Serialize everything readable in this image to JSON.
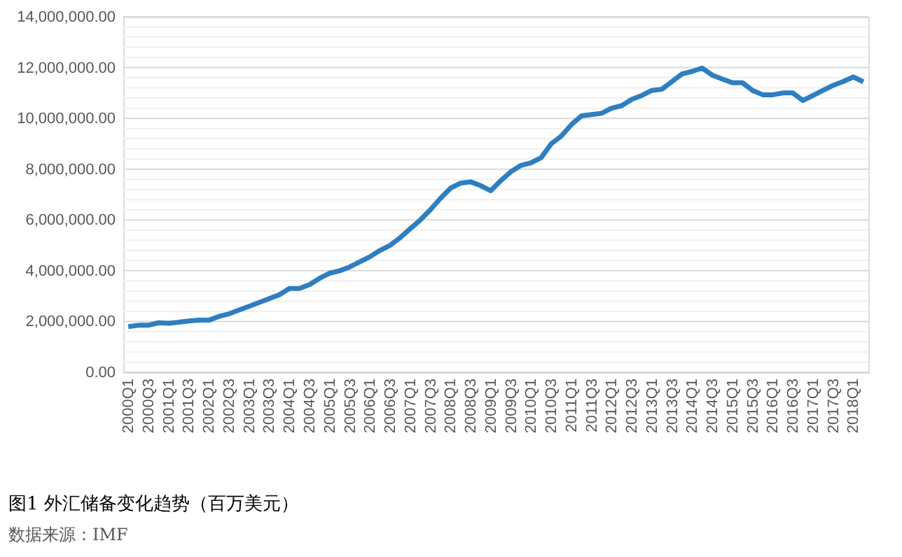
{
  "chart_data": {
    "type": "line",
    "title": "图1   外汇储备变化趋势（百万美元）",
    "annotations": [
      "数据来源：IMF"
    ],
    "categories": [
      "2000Q1",
      null,
      "2000Q3",
      null,
      "2001Q1",
      null,
      "2001Q3",
      null,
      "2002Q1",
      null,
      "2002Q3",
      null,
      "2003Q1",
      null,
      "2003Q3",
      null,
      "2004Q1",
      null,
      "2004Q3",
      null,
      "2005Q1",
      null,
      "2005Q3",
      null,
      "2006Q1",
      null,
      "2006Q3",
      null,
      "2007Q1",
      null,
      "2007Q3",
      null,
      "2008Q1",
      null,
      "2008Q3",
      null,
      "2009Q1",
      null,
      "2009Q3",
      null,
      "2010Q1",
      null,
      "2010Q3",
      null,
      "2011Q1",
      null,
      "2011Q3",
      null,
      "2012Q1",
      null,
      "2012Q3",
      null,
      "2013Q1",
      null,
      "2013Q3",
      null,
      "2014Q1",
      null,
      "2014Q3",
      null,
      "2015Q1",
      null,
      "2015Q3",
      null,
      "2016Q1",
      null,
      "2016Q3",
      null,
      "2017Q1",
      null,
      "2017Q3",
      null,
      "2018Q1",
      null
    ],
    "series": [
      {
        "color": "#2e7ec1",
        "values": [
          1800000,
          1850000,
          1850000,
          1950000,
          1930000,
          1970000,
          2020000,
          2050000,
          2050000,
          2200000,
          2300000,
          2450000,
          2600000,
          2750000,
          2900000,
          3050000,
          3300000,
          3300000,
          3450000,
          3700000,
          3900000,
          4000000,
          4150000,
          4350000,
          4550000,
          4800000,
          5000000,
          5300000,
          5650000,
          6000000,
          6400000,
          6850000,
          7250000,
          7450000,
          7500000,
          7350000,
          7150000,
          7550000,
          7900000,
          8150000,
          8250000,
          8450000,
          9000000,
          9300000,
          9750000,
          10100000,
          10150000,
          10200000,
          10400000,
          10500000,
          10750000,
          10900000,
          11100000,
          11150000,
          11450000,
          11750000,
          11850000,
          11980000,
          11700000,
          11550000,
          11400000,
          11400000,
          11100000,
          10930000,
          10930000,
          11000000,
          11000000,
          10700000,
          10900000,
          11100000,
          11300000,
          11450000,
          11630000,
          11440000
        ]
      }
    ],
    "ylim": [
      0,
      14000000
    ],
    "yticks": [
      {
        "value": 0,
        "label": "0.00"
      },
      {
        "value": 400000,
        "label": null
      },
      {
        "value": 800000,
        "label": null
      },
      {
        "value": 1200000,
        "label": null
      },
      {
        "value": 1600000,
        "label": null
      },
      {
        "value": 2000000,
        "label": "2,000,000.00"
      },
      {
        "value": 2400000,
        "label": null
      },
      {
        "value": 2800000,
        "label": null
      },
      {
        "value": 3200000,
        "label": null
      },
      {
        "value": 3600000,
        "label": null
      },
      {
        "value": 4000000,
        "label": "4,000,000.00"
      },
      {
        "value": 4400000,
        "label": null
      },
      {
        "value": 4800000,
        "label": null
      },
      {
        "value": 5200000,
        "label": null
      },
      {
        "value": 5600000,
        "label": null
      },
      {
        "value": 6000000,
        "label": "6,000,000.00"
      },
      {
        "value": 6400000,
        "label": null
      },
      {
        "value": 6800000,
        "label": null
      },
      {
        "value": 7200000,
        "label": null
      },
      {
        "value": 7600000,
        "label": null
      },
      {
        "value": 8000000,
        "label": "8,000,000.00"
      },
      {
        "value": 8400000,
        "label": null
      },
      {
        "value": 8800000,
        "label": null
      },
      {
        "value": 9200000,
        "label": null
      },
      {
        "value": 9600000,
        "label": null
      },
      {
        "value": 10000000,
        "label": "10,000,000.00"
      },
      {
        "value": 10400000,
        "label": null
      },
      {
        "value": 10800000,
        "label": null
      },
      {
        "value": 11200000,
        "label": null
      },
      {
        "value": 11600000,
        "label": null
      },
      {
        "value": 12000000,
        "label": "12,000,000.00"
      },
      {
        "value": 12400000,
        "label": null
      },
      {
        "value": 12800000,
        "label": null
      },
      {
        "value": 13200000,
        "label": null
      },
      {
        "value": 13600000,
        "label": null
      },
      {
        "value": 14000000,
        "label": "14,000,000.00"
      }
    ],
    "grid": "y",
    "legend": false,
    "marker": "none",
    "line_style": "solid"
  }
}
